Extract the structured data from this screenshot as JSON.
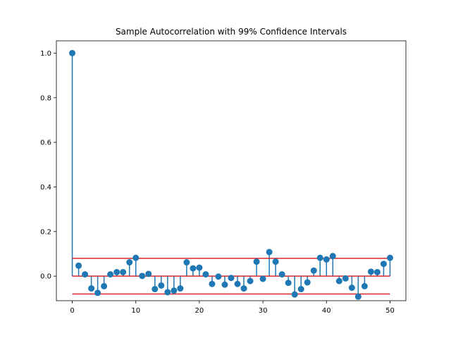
{
  "chart_data": {
    "type": "stem",
    "title": "Sample Autocorrelation with 99% Confidence Intervals",
    "xlabel": "",
    "ylabel": "",
    "xlim": [
      -2.5,
      52.5
    ],
    "ylim": [
      -0.11,
      1.055
    ],
    "xticks": [
      0,
      10,
      20,
      30,
      40,
      50
    ],
    "yticks": [
      0.0,
      0.2,
      0.4,
      0.6,
      0.8,
      1.0
    ],
    "xtick_labels": [
      "0",
      "10",
      "20",
      "30",
      "40",
      "50"
    ],
    "ytick_labels": [
      "0.0",
      "0.2",
      "0.4",
      "0.6",
      "0.8",
      "1.0"
    ],
    "grid": false,
    "lags": [
      0,
      1,
      2,
      3,
      4,
      5,
      6,
      7,
      8,
      9,
      10,
      11,
      12,
      13,
      14,
      15,
      16,
      17,
      18,
      19,
      20,
      21,
      22,
      23,
      24,
      25,
      26,
      27,
      28,
      29,
      30,
      31,
      32,
      33,
      34,
      35,
      36,
      37,
      38,
      39,
      40,
      41,
      42,
      43,
      44,
      45,
      46,
      47,
      48,
      49,
      50
    ],
    "values": [
      1.0,
      0.047,
      0.008,
      -0.055,
      -0.075,
      -0.045,
      0.008,
      0.018,
      0.018,
      0.062,
      0.082,
      0.001,
      0.01,
      -0.058,
      -0.042,
      -0.072,
      -0.065,
      -0.055,
      0.062,
      0.035,
      0.038,
      0.008,
      -0.035,
      -0.002,
      -0.038,
      -0.008,
      -0.035,
      -0.055,
      -0.022,
      0.065,
      -0.012,
      0.108,
      0.065,
      0.008,
      -0.03,
      -0.082,
      -0.058,
      -0.028,
      0.025,
      0.082,
      0.075,
      0.09,
      -0.022,
      -0.01,
      -0.052,
      -0.092,
      -0.045,
      0.02,
      0.018,
      0.055,
      0.082
    ],
    "confidence_upper": 0.08,
    "confidence_lower": -0.08,
    "baseline": 0.0,
    "colors": {
      "stem": "#1f77b4",
      "marker": "#1f77b4",
      "bounds": "#d62728",
      "baseline": "#d62728"
    }
  }
}
